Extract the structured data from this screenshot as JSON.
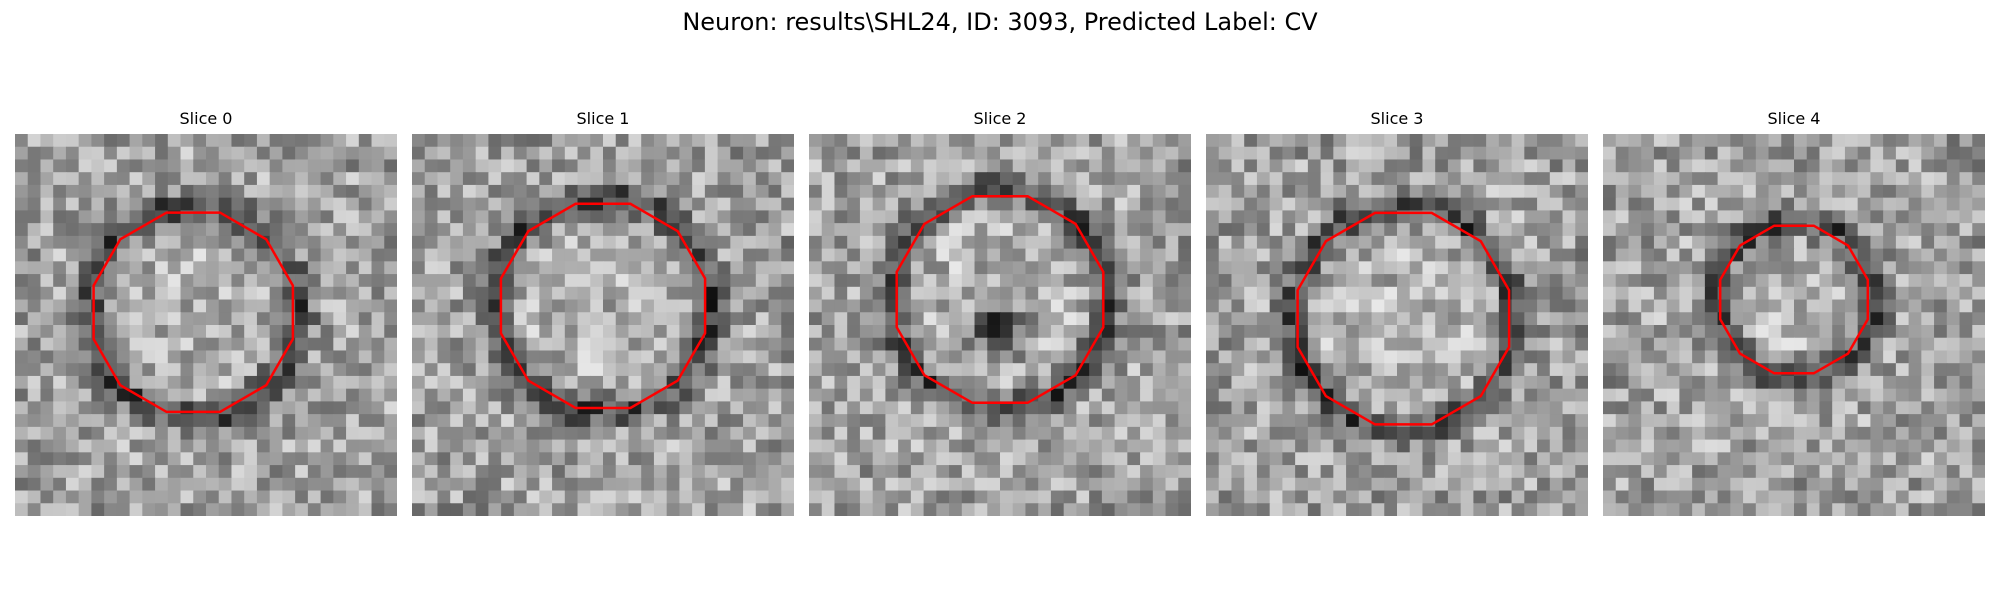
{
  "figure": {
    "title": "Neuron: results\\SHL24, ID: 3093, Predicted Label: CV"
  },
  "panels": [
    {
      "title": "Slice 0",
      "center_dark": false
    },
    {
      "title": "Slice 1",
      "center_dark": false
    },
    {
      "title": "Slice 2",
      "center_dark": true
    },
    {
      "title": "Slice 3",
      "center_dark": false
    },
    {
      "title": "Slice 4",
      "center_dark": false
    }
  ],
  "colors": {
    "contour": "#ff0000",
    "image_colormap": "gray"
  },
  "grid": {
    "cells": 30
  }
}
